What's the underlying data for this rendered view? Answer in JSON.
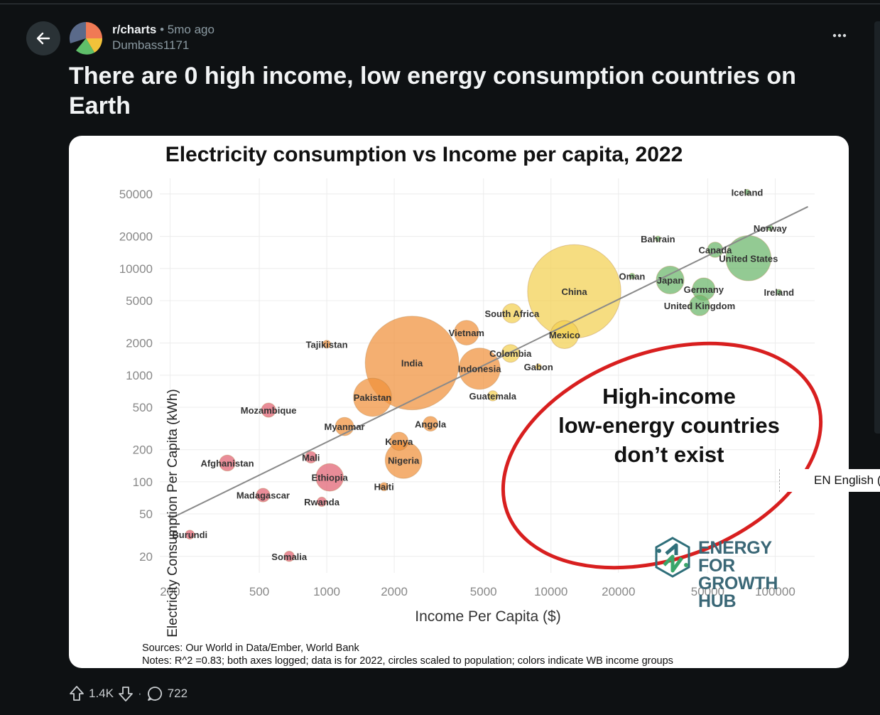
{
  "post": {
    "subreddit": "r/charts",
    "time": "5mo ago",
    "author": "Dumbass1171",
    "title": "There are 0 high income, low energy consumption countries on Earth",
    "upvotes": "1.4K",
    "comments": "722"
  },
  "overlay": {
    "lang": "EN English (U"
  },
  "chart_data": {
    "type": "scatter",
    "title": "Electricity consumption vs Income per capita, 2022",
    "xlabel": "Income Per Capita ($)",
    "ylabel": "Electricity Consumption Per Capita (kWh)",
    "x_scale": "log",
    "y_scale": "log",
    "xlim": [
      180,
      150000
    ],
    "ylim": [
      14,
      70000
    ],
    "x_ticks": [
      200,
      500,
      1000,
      2000,
      5000,
      10000,
      20000,
      50000,
      100000
    ],
    "y_ticks": [
      20,
      50,
      100,
      200,
      500,
      1000,
      2000,
      5000,
      10000,
      20000,
      50000
    ],
    "trendline": [
      [
        200,
        45
      ],
      [
        140000,
        38000
      ]
    ],
    "annotation": "High-income low-energy countries don’t exist",
    "annotation_lines": [
      "High-income",
      "low-energy countries",
      "don’t exist"
    ],
    "logo_lines": [
      "ENERGY FOR",
      "GROWTH HUB"
    ],
    "sources": "Sources: Our World in Data/Ember, World Bank",
    "notes": "Notes: R^2 =0.83; both axes logged; data is for 2022, circles scaled to population; colors indicate WB income groups",
    "grid": true,
    "colors": {
      "low_income": "#e06070",
      "lower_middle": "#f0903a",
      "upper_middle": "#f2d050",
      "high_income": "#6ab56a"
    },
    "points": [
      {
        "label": "Iceland",
        "x": 75000,
        "y": 52000,
        "group": "high_income",
        "pop": 0.4
      },
      {
        "label": "Norway",
        "x": 95000,
        "y": 24000,
        "group": "high_income",
        "pop": 5.4
      },
      {
        "label": "Bahrain",
        "x": 30000,
        "y": 19000,
        "group": "high_income",
        "pop": 1.5
      },
      {
        "label": "Canada",
        "x": 54000,
        "y": 15000,
        "group": "high_income",
        "pop": 38
      },
      {
        "label": "United States",
        "x": 76000,
        "y": 12500,
        "group": "high_income",
        "pop": 330
      },
      {
        "label": "Oman",
        "x": 23000,
        "y": 8500,
        "group": "high_income",
        "pop": 4.5
      },
      {
        "label": "Japan",
        "x": 34000,
        "y": 7800,
        "group": "high_income",
        "pop": 125
      },
      {
        "label": "Germany",
        "x": 48000,
        "y": 6400,
        "group": "high_income",
        "pop": 83
      },
      {
        "label": "Ireland",
        "x": 104000,
        "y": 6000,
        "group": "high_income",
        "pop": 5
      },
      {
        "label": "United Kingdom",
        "x": 46000,
        "y": 4500,
        "group": "high_income",
        "pop": 67
      },
      {
        "label": "China",
        "x": 12700,
        "y": 6100,
        "group": "upper_middle",
        "pop": 1410
      },
      {
        "label": "South Africa",
        "x": 6700,
        "y": 3800,
        "group": "upper_middle",
        "pop": 60
      },
      {
        "label": "Mexico",
        "x": 11500,
        "y": 2400,
        "group": "upper_middle",
        "pop": 127
      },
      {
        "label": "Colombia",
        "x": 6600,
        "y": 1600,
        "group": "upper_middle",
        "pop": 51
      },
      {
        "label": "Gabon",
        "x": 8800,
        "y": 1200,
        "group": "upper_middle",
        "pop": 2.3
      },
      {
        "label": "Indonesia",
        "x": 4800,
        "y": 1150,
        "group": "lower_middle",
        "pop": 275
      },
      {
        "label": "Guatemala",
        "x": 5500,
        "y": 640,
        "group": "upper_middle",
        "pop": 17
      },
      {
        "label": "Vietnam",
        "x": 4200,
        "y": 2500,
        "group": "lower_middle",
        "pop": 98
      },
      {
        "label": "India",
        "x": 2400,
        "y": 1300,
        "group": "lower_middle",
        "pop": 1417
      },
      {
        "label": "Pakistan",
        "x": 1600,
        "y": 620,
        "group": "lower_middle",
        "pop": 235
      },
      {
        "label": "Angola",
        "x": 2900,
        "y": 350,
        "group": "lower_middle",
        "pop": 35
      },
      {
        "label": "Tajikistan",
        "x": 1000,
        "y": 1950,
        "group": "lower_middle",
        "pop": 10
      },
      {
        "label": "Kenya",
        "x": 2100,
        "y": 240,
        "group": "lower_middle",
        "pop": 54
      },
      {
        "label": "Nigeria",
        "x": 2200,
        "y": 160,
        "group": "lower_middle",
        "pop": 218
      },
      {
        "label": "Myanmar",
        "x": 1200,
        "y": 330,
        "group": "lower_middle",
        "pop": 54
      },
      {
        "label": "Haiti",
        "x": 1800,
        "y": 90,
        "group": "lower_middle",
        "pop": 11
      },
      {
        "label": "Mozambique",
        "x": 550,
        "y": 470,
        "group": "low_income",
        "pop": 33
      },
      {
        "label": "Afghanistan",
        "x": 360,
        "y": 150,
        "group": "low_income",
        "pop": 41
      },
      {
        "label": "Mali",
        "x": 850,
        "y": 170,
        "group": "low_income",
        "pop": 22
      },
      {
        "label": "Ethiopia",
        "x": 1030,
        "y": 110,
        "group": "low_income",
        "pop": 123
      },
      {
        "label": "Madagascar",
        "x": 520,
        "y": 75,
        "group": "low_income",
        "pop": 30
      },
      {
        "label": "Rwanda",
        "x": 950,
        "y": 65,
        "group": "low_income",
        "pop": 14
      },
      {
        "label": "Burundi",
        "x": 245,
        "y": 32,
        "group": "low_income",
        "pop": 13
      },
      {
        "label": "Somalia",
        "x": 680,
        "y": 20,
        "group": "low_income",
        "pop": 17
      }
    ]
  }
}
